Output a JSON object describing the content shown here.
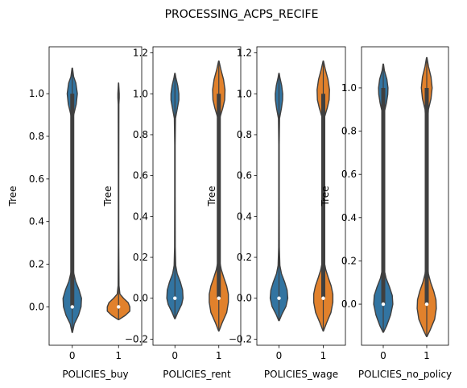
{
  "chart_data": {
    "type": "violin",
    "title": "PROCESSING_ACPS_RECIFE",
    "colors": {
      "category_0": "#3274a1",
      "category_1": "#e1812c"
    },
    "panels": [
      {
        "xlabel": "POLICIES_buy",
        "ylabel": "Tree",
        "categories": [
          "0",
          "1"
        ],
        "ylim": [
          -0.18,
          1.22
        ],
        "yticks": [
          0.0,
          0.2,
          0.4,
          0.6,
          0.8,
          1.0
        ],
        "yticklabels": [
          "0.0",
          "0.2",
          "0.4",
          "0.6",
          "0.8",
          "1.0"
        ],
        "violins": [
          {
            "category": "0",
            "color": "#3274a1",
            "min": -0.12,
            "max": 1.12,
            "median": 0.0,
            "q1": 0.0,
            "q3": 1.0,
            "profile": [
              [
                -0.12,
                0.02
              ],
              [
                -0.08,
                0.18
              ],
              [
                -0.04,
                0.55
              ],
              [
                0.0,
                0.78
              ],
              [
                0.04,
                0.82
              ],
              [
                0.08,
                0.6
              ],
              [
                0.12,
                0.3
              ],
              [
                0.16,
                0.12
              ],
              [
                0.2,
                0.06
              ],
              [
                0.3,
                0.03
              ],
              [
                0.5,
                0.03
              ],
              [
                0.7,
                0.03
              ],
              [
                0.85,
                0.05
              ],
              [
                0.9,
                0.12
              ],
              [
                0.95,
                0.35
              ],
              [
                1.0,
                0.45
              ],
              [
                1.05,
                0.32
              ],
              [
                1.08,
                0.12
              ],
              [
                1.12,
                0.02
              ]
            ]
          },
          {
            "category": "1",
            "color": "#e1812c",
            "min": -0.06,
            "max": 1.05,
            "median": 0.0,
            "q1": 0.0,
            "q3": 0.0,
            "profile": [
              [
                -0.06,
                0.02
              ],
              [
                -0.04,
                0.6
              ],
              [
                -0.02,
                1.0
              ],
              [
                0.0,
                1.0
              ],
              [
                0.02,
                0.85
              ],
              [
                0.04,
                0.45
              ],
              [
                0.06,
                0.12
              ],
              [
                0.1,
                0.04
              ],
              [
                0.3,
                0.02
              ],
              [
                0.6,
                0.02
              ],
              [
                0.95,
                0.03
              ],
              [
                0.98,
                0.06
              ],
              [
                1.0,
                0.06
              ],
              [
                1.03,
                0.03
              ],
              [
                1.05,
                0.01
              ]
            ]
          }
        ]
      },
      {
        "xlabel": "POLICIES_rent",
        "ylabel": "Tree",
        "categories": [
          "0",
          "1"
        ],
        "ylim": [
          -0.23,
          1.23
        ],
        "yticks": [
          -0.2,
          0.0,
          0.2,
          0.4,
          0.6,
          0.8,
          1.0,
          1.2
        ],
        "yticklabels": [
          "−0.2",
          "0.0",
          "0.2",
          "0.4",
          "0.6",
          "0.8",
          "1.0",
          "1.2"
        ],
        "violins": [
          {
            "category": "0",
            "color": "#3274a1",
            "min": -0.1,
            "max": 1.1,
            "median": 0.0,
            "q1": 0.0,
            "q3": 0.0,
            "profile": [
              [
                -0.1,
                0.02
              ],
              [
                -0.07,
                0.25
              ],
              [
                -0.03,
                0.6
              ],
              [
                0.0,
                0.72
              ],
              [
                0.04,
                0.68
              ],
              [
                0.08,
                0.48
              ],
              [
                0.12,
                0.2
              ],
              [
                0.16,
                0.07
              ],
              [
                0.25,
                0.03
              ],
              [
                0.5,
                0.02
              ],
              [
                0.75,
                0.02
              ],
              [
                0.88,
                0.05
              ],
              [
                0.93,
                0.22
              ],
              [
                0.97,
                0.35
              ],
              [
                1.0,
                0.35
              ],
              [
                1.04,
                0.25
              ],
              [
                1.08,
                0.08
              ],
              [
                1.1,
                0.02
              ]
            ]
          },
          {
            "category": "1",
            "color": "#e1812c",
            "min": -0.16,
            "max": 1.16,
            "median": 0.0,
            "q1": 0.0,
            "q3": 1.0,
            "profile": [
              [
                -0.16,
                0.02
              ],
              [
                -0.12,
                0.3
              ],
              [
                -0.07,
                0.7
              ],
              [
                -0.02,
                0.85
              ],
              [
                0.02,
                0.85
              ],
              [
                0.06,
                0.7
              ],
              [
                0.1,
                0.45
              ],
              [
                0.14,
                0.22
              ],
              [
                0.18,
                0.08
              ],
              [
                0.25,
                0.05
              ],
              [
                0.5,
                0.04
              ],
              [
                0.75,
                0.04
              ],
              [
                0.88,
                0.08
              ],
              [
                0.93,
                0.35
              ],
              [
                0.97,
                0.52
              ],
              [
                1.02,
                0.55
              ],
              [
                1.07,
                0.42
              ],
              [
                1.12,
                0.18
              ],
              [
                1.16,
                0.02
              ]
            ]
          }
        ]
      },
      {
        "xlabel": "POLICIES_wage",
        "ylabel": "Tree",
        "categories": [
          "0",
          "1"
        ],
        "ylim": [
          -0.23,
          1.23
        ],
        "yticks": [
          -0.2,
          0.0,
          0.2,
          0.4,
          0.6,
          0.8,
          1.0,
          1.2
        ],
        "yticklabels": [
          "−0.2",
          "0.0",
          "0.2",
          "0.4",
          "0.6",
          "0.8",
          "1.0",
          "1.2"
        ],
        "violins": [
          {
            "category": "0",
            "color": "#3274a1",
            "min": -0.11,
            "max": 1.1,
            "median": 0.0,
            "q1": 0.0,
            "q3": 0.0,
            "profile": [
              [
                -0.11,
                0.02
              ],
              [
                -0.08,
                0.25
              ],
              [
                -0.04,
                0.62
              ],
              [
                0.0,
                0.78
              ],
              [
                0.04,
                0.72
              ],
              [
                0.08,
                0.5
              ],
              [
                0.12,
                0.22
              ],
              [
                0.16,
                0.08
              ],
              [
                0.25,
                0.03
              ],
              [
                0.5,
                0.02
              ],
              [
                0.75,
                0.02
              ],
              [
                0.88,
                0.05
              ],
              [
                0.93,
                0.22
              ],
              [
                0.97,
                0.32
              ],
              [
                1.0,
                0.33
              ],
              [
                1.04,
                0.24
              ],
              [
                1.08,
                0.08
              ],
              [
                1.1,
                0.02
              ]
            ]
          },
          {
            "category": "1",
            "color": "#e1812c",
            "min": -0.16,
            "max": 1.16,
            "median": 0.0,
            "q1": 0.0,
            "q3": 1.0,
            "profile": [
              [
                -0.16,
                0.02
              ],
              [
                -0.12,
                0.3
              ],
              [
                -0.07,
                0.68
              ],
              [
                -0.02,
                0.85
              ],
              [
                0.02,
                0.85
              ],
              [
                0.06,
                0.7
              ],
              [
                0.1,
                0.45
              ],
              [
                0.14,
                0.22
              ],
              [
                0.18,
                0.08
              ],
              [
                0.25,
                0.05
              ],
              [
                0.5,
                0.04
              ],
              [
                0.75,
                0.04
              ],
              [
                0.88,
                0.08
              ],
              [
                0.93,
                0.35
              ],
              [
                0.97,
                0.52
              ],
              [
                1.02,
                0.55
              ],
              [
                1.07,
                0.42
              ],
              [
                1.12,
                0.18
              ],
              [
                1.16,
                0.02
              ]
            ]
          }
        ]
      },
      {
        "xlabel": "POLICIES_no_policy",
        "ylabel": "Tree",
        "categories": [
          "0",
          "1"
        ],
        "ylim": [
          -0.19,
          1.19
        ],
        "yticks": [
          0.0,
          0.2,
          0.4,
          0.6,
          0.8,
          1.0
        ],
        "yticklabels": [
          "0.0",
          "0.2",
          "0.4",
          "0.6",
          "0.8",
          "1.0"
        ],
        "violins": [
          {
            "category": "0",
            "color": "#3274a1",
            "min": -0.13,
            "max": 1.11,
            "median": 0.0,
            "q1": 0.0,
            "q3": 1.0,
            "profile": [
              [
                -0.13,
                0.02
              ],
              [
                -0.1,
                0.3
              ],
              [
                -0.05,
                0.65
              ],
              [
                0.0,
                0.85
              ],
              [
                0.04,
                0.8
              ],
              [
                0.08,
                0.55
              ],
              [
                0.12,
                0.25
              ],
              [
                0.16,
                0.08
              ],
              [
                0.25,
                0.03
              ],
              [
                0.5,
                0.02
              ],
              [
                0.75,
                0.02
              ],
              [
                0.88,
                0.06
              ],
              [
                0.93,
                0.28
              ],
              [
                0.97,
                0.4
              ],
              [
                1.0,
                0.42
              ],
              [
                1.04,
                0.32
              ],
              [
                1.08,
                0.1
              ],
              [
                1.11,
                0.02
              ]
            ]
          },
          {
            "category": "1",
            "color": "#e1812c",
            "min": -0.15,
            "max": 1.14,
            "median": 0.0,
            "q1": 0.0,
            "q3": 1.0,
            "profile": [
              [
                -0.15,
                0.02
              ],
              [
                -0.12,
                0.3
              ],
              [
                -0.07,
                0.7
              ],
              [
                -0.02,
                0.85
              ],
              [
                0.02,
                0.82
              ],
              [
                0.06,
                0.62
              ],
              [
                0.1,
                0.35
              ],
              [
                0.14,
                0.15
              ],
              [
                0.2,
                0.05
              ],
              [
                0.35,
                0.03
              ],
              [
                0.6,
                0.03
              ],
              [
                0.8,
                0.04
              ],
              [
                0.9,
                0.15
              ],
              [
                0.95,
                0.38
              ],
              [
                1.0,
                0.48
              ],
              [
                1.05,
                0.38
              ],
              [
                1.1,
                0.15
              ],
              [
                1.14,
                0.02
              ]
            ]
          }
        ]
      }
    ]
  }
}
